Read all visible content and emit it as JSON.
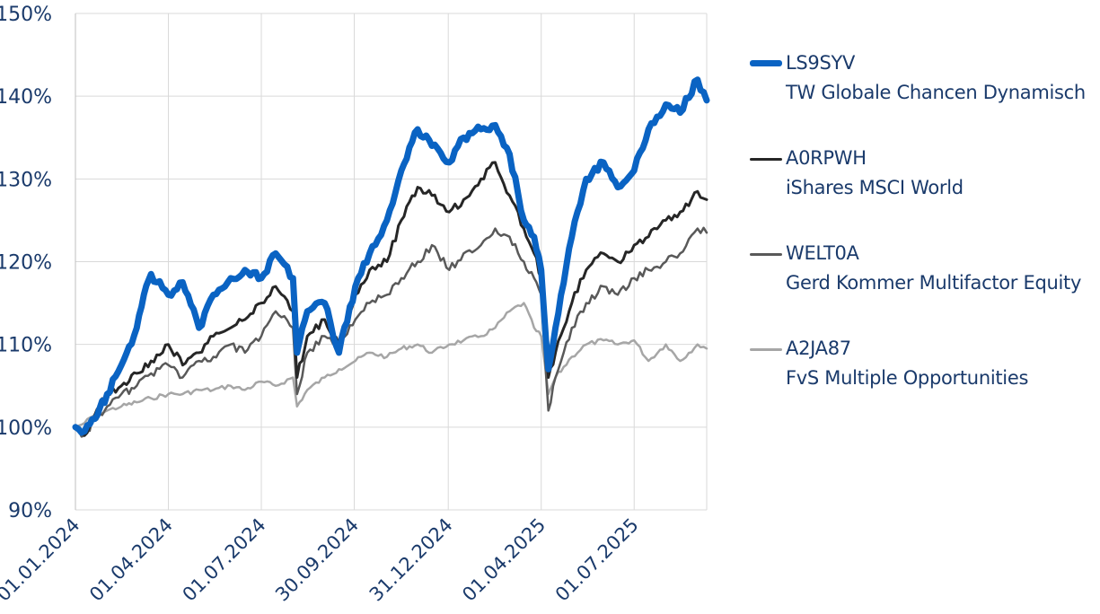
{
  "chart_data": {
    "type": "line",
    "title": "",
    "xlabel": "",
    "ylabel": "",
    "ylim": [
      90,
      150
    ],
    "xlim": [
      "2024-01-01",
      "2025-09-10"
    ],
    "grid": true,
    "legend_position": "right",
    "y_ticks": [
      "90%",
      "100%",
      "110%",
      "120%",
      "130%",
      "140%",
      "150%"
    ],
    "x_ticks": [
      {
        "date": "2024-01-01",
        "label": "01.01.2024"
      },
      {
        "date": "2024-04-01",
        "label": "01.04.2024"
      },
      {
        "date": "2024-07-01",
        "label": "01.07.2024"
      },
      {
        "date": "2024-09-30",
        "label": "30.09.2024"
      },
      {
        "date": "2024-12-31",
        "label": "31.12.2024"
      },
      {
        "date": "2025-04-01",
        "label": "01.04.2025"
      },
      {
        "date": "2025-07-01",
        "label": "01.07.2025"
      }
    ],
    "series": [
      {
        "code": "A2JA87",
        "name": "FvS Multiple Opportunities",
        "color": "#a6a6a6",
        "points": [
          [
            "2024-01-01",
            100
          ],
          [
            "2024-01-10",
            100.5
          ],
          [
            "2024-01-20",
            101.5
          ],
          [
            "2024-02-01",
            102
          ],
          [
            "2024-02-15",
            102.5
          ],
          [
            "2024-03-01",
            103
          ],
          [
            "2024-03-15",
            103.5
          ],
          [
            "2024-04-01",
            104
          ],
          [
            "2024-04-15",
            104
          ],
          [
            "2024-05-01",
            104.5
          ],
          [
            "2024-05-15",
            104.5
          ],
          [
            "2024-06-01",
            105
          ],
          [
            "2024-06-15",
            104.5
          ],
          [
            "2024-07-01",
            105.5
          ],
          [
            "2024-07-15",
            105
          ],
          [
            "2024-08-01",
            106
          ],
          [
            "2024-08-05",
            102.5
          ],
          [
            "2024-08-15",
            104.5
          ],
          [
            "2024-09-01",
            106
          ],
          [
            "2024-09-15",
            107
          ],
          [
            "2024-10-01",
            108
          ],
          [
            "2024-10-15",
            109
          ],
          [
            "2024-11-01",
            108.5
          ],
          [
            "2024-11-15",
            109.5
          ],
          [
            "2024-12-01",
            110
          ],
          [
            "2024-12-15",
            109
          ],
          [
            "2025-01-01",
            110
          ],
          [
            "2025-01-15",
            110.5
          ],
          [
            "2025-02-01",
            111
          ],
          [
            "2025-02-15",
            112
          ],
          [
            "2025-03-01",
            114
          ],
          [
            "2025-03-15",
            115
          ],
          [
            "2025-03-25",
            112
          ],
          [
            "2025-04-01",
            111
          ],
          [
            "2025-04-08",
            104
          ],
          [
            "2025-04-15",
            106
          ],
          [
            "2025-05-01",
            108.5
          ],
          [
            "2025-05-15",
            110
          ],
          [
            "2025-06-01",
            110.5
          ],
          [
            "2025-06-15",
            110
          ],
          [
            "2025-07-01",
            110.5
          ],
          [
            "2025-07-15",
            108
          ],
          [
            "2025-08-01",
            110
          ],
          [
            "2025-08-15",
            108
          ],
          [
            "2025-09-01",
            110
          ],
          [
            "2025-09-10",
            109.5
          ]
        ]
      },
      {
        "code": "WELT0A",
        "name": "Gerd Kommer Multifactor Equity",
        "color": "#595959",
        "points": [
          [
            "2024-01-01",
            100
          ],
          [
            "2024-01-10",
            99
          ],
          [
            "2024-01-20",
            101
          ],
          [
            "2024-02-01",
            102.5
          ],
          [
            "2024-02-15",
            104
          ],
          [
            "2024-03-01",
            105
          ],
          [
            "2024-03-15",
            106.5
          ],
          [
            "2024-04-01",
            107.5
          ],
          [
            "2024-04-15",
            106
          ],
          [
            "2024-05-01",
            108
          ],
          [
            "2024-05-15",
            108.5
          ],
          [
            "2024-06-01",
            110
          ],
          [
            "2024-06-15",
            109
          ],
          [
            "2024-07-01",
            111
          ],
          [
            "2024-07-15",
            114
          ],
          [
            "2024-08-01",
            112
          ],
          [
            "2024-08-05",
            104
          ],
          [
            "2024-08-15",
            109
          ],
          [
            "2024-09-01",
            111
          ],
          [
            "2024-09-15",
            110
          ],
          [
            "2024-10-01",
            113
          ],
          [
            "2024-10-15",
            115
          ],
          [
            "2024-11-01",
            116
          ],
          [
            "2024-11-15",
            118
          ],
          [
            "2024-12-01",
            120
          ],
          [
            "2024-12-15",
            122
          ],
          [
            "2025-01-01",
            119
          ],
          [
            "2025-01-15",
            121
          ],
          [
            "2025-02-01",
            122
          ],
          [
            "2025-02-15",
            124
          ],
          [
            "2025-03-01",
            123
          ],
          [
            "2025-03-15",
            120
          ],
          [
            "2025-03-25",
            118
          ],
          [
            "2025-04-01",
            116
          ],
          [
            "2025-04-08",
            102
          ],
          [
            "2025-04-15",
            106
          ],
          [
            "2025-05-01",
            112
          ],
          [
            "2025-05-15",
            115
          ],
          [
            "2025-06-01",
            117
          ],
          [
            "2025-06-15",
            116
          ],
          [
            "2025-07-01",
            118
          ],
          [
            "2025-07-15",
            119
          ],
          [
            "2025-08-01",
            120
          ],
          [
            "2025-08-15",
            121
          ],
          [
            "2025-09-01",
            124
          ],
          [
            "2025-09-10",
            123.5
          ]
        ]
      },
      {
        "code": "A0RPWH",
        "name": "iShares MSCI World",
        "color": "#262626",
        "points": [
          [
            "2024-01-01",
            100
          ],
          [
            "2024-01-10",
            99
          ],
          [
            "2024-01-20",
            101.5
          ],
          [
            "2024-02-01",
            104
          ],
          [
            "2024-02-15",
            105
          ],
          [
            "2024-03-01",
            106.5
          ],
          [
            "2024-03-15",
            108
          ],
          [
            "2024-04-01",
            110
          ],
          [
            "2024-04-15",
            107.5
          ],
          [
            "2024-05-01",
            109
          ],
          [
            "2024-05-15",
            111
          ],
          [
            "2024-06-01",
            112
          ],
          [
            "2024-06-15",
            113
          ],
          [
            "2024-07-01",
            115
          ],
          [
            "2024-07-15",
            117
          ],
          [
            "2024-08-01",
            114
          ],
          [
            "2024-08-05",
            106
          ],
          [
            "2024-08-15",
            111
          ],
          [
            "2024-09-01",
            113
          ],
          [
            "2024-09-15",
            110
          ],
          [
            "2024-10-01",
            116
          ],
          [
            "2024-10-15",
            119
          ],
          [
            "2024-11-01",
            120
          ],
          [
            "2024-11-15",
            125
          ],
          [
            "2024-12-01",
            129
          ],
          [
            "2024-12-15",
            128
          ],
          [
            "2025-01-01",
            126
          ],
          [
            "2025-01-15",
            127.5
          ],
          [
            "2025-02-01",
            130
          ],
          [
            "2025-02-15",
            132
          ],
          [
            "2025-03-01",
            128
          ],
          [
            "2025-03-15",
            124
          ],
          [
            "2025-03-25",
            121
          ],
          [
            "2025-04-01",
            118
          ],
          [
            "2025-04-08",
            106
          ],
          [
            "2025-04-15",
            109
          ],
          [
            "2025-05-01",
            115
          ],
          [
            "2025-05-15",
            119
          ],
          [
            "2025-06-01",
            121
          ],
          [
            "2025-06-15",
            120
          ],
          [
            "2025-07-01",
            122
          ],
          [
            "2025-07-15",
            123
          ],
          [
            "2025-08-01",
            125
          ],
          [
            "2025-08-15",
            126
          ],
          [
            "2025-09-01",
            128.5
          ],
          [
            "2025-09-10",
            127.5
          ]
        ]
      },
      {
        "code": "LS9SYV",
        "name": "TW Globale Chancen Dynamisch",
        "color": "#0a63c3",
        "points": [
          [
            "2024-01-01",
            100
          ],
          [
            "2024-01-10",
            99.5
          ],
          [
            "2024-01-20",
            101
          ],
          [
            "2024-02-01",
            104
          ],
          [
            "2024-02-15",
            107.5
          ],
          [
            "2024-03-01",
            112
          ],
          [
            "2024-03-08",
            116
          ],
          [
            "2024-03-15",
            118.5
          ],
          [
            "2024-04-01",
            116
          ],
          [
            "2024-04-15",
            117.5
          ],
          [
            "2024-05-01",
            112
          ],
          [
            "2024-05-15",
            116
          ],
          [
            "2024-06-01",
            118
          ],
          [
            "2024-06-15",
            119
          ],
          [
            "2024-07-01",
            118
          ],
          [
            "2024-07-15",
            121
          ],
          [
            "2024-08-01",
            118
          ],
          [
            "2024-08-05",
            109
          ],
          [
            "2024-08-15",
            114
          ],
          [
            "2024-09-01",
            115
          ],
          [
            "2024-09-15",
            109
          ],
          [
            "2024-10-01",
            117
          ],
          [
            "2024-10-15",
            121
          ],
          [
            "2024-11-01",
            125
          ],
          [
            "2024-11-15",
            131
          ],
          [
            "2024-12-01",
            136
          ],
          [
            "2024-12-15",
            134
          ],
          [
            "2025-01-01",
            132
          ],
          [
            "2025-01-15",
            135
          ],
          [
            "2025-02-01",
            136
          ],
          [
            "2025-02-15",
            136.5
          ],
          [
            "2025-03-01",
            133
          ],
          [
            "2025-03-15",
            125
          ],
          [
            "2025-03-25",
            123
          ],
          [
            "2025-04-01",
            119
          ],
          [
            "2025-04-08",
            107
          ],
          [
            "2025-04-15",
            112
          ],
          [
            "2025-05-01",
            123
          ],
          [
            "2025-05-15",
            130
          ],
          [
            "2025-06-01",
            132
          ],
          [
            "2025-06-15",
            129
          ],
          [
            "2025-07-01",
            131
          ],
          [
            "2025-07-15",
            136
          ],
          [
            "2025-08-01",
            139
          ],
          [
            "2025-08-15",
            138
          ],
          [
            "2025-09-01",
            142
          ],
          [
            "2025-09-10",
            139.5
          ]
        ]
      }
    ]
  },
  "legend": [
    {
      "code": "LS9SYV",
      "name": "TW Globale Chancen Dynamisch",
      "color": "#0a63c3"
    },
    {
      "code": "A0RPWH",
      "name": "iShares MSCI World",
      "color": "#262626"
    },
    {
      "code": "WELT0A",
      "name": "Gerd Kommer Multifactor Equity",
      "color": "#595959"
    },
    {
      "code": "A2JA87",
      "name": "FvS Multiple Opportunities",
      "color": "#a6a6a6"
    }
  ]
}
